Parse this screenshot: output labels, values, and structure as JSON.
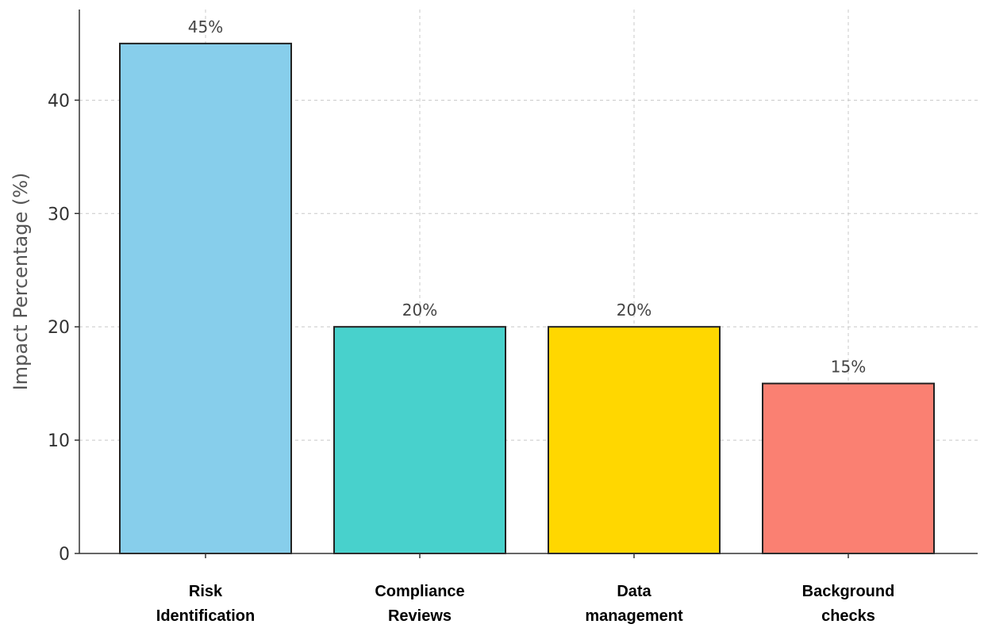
{
  "chart_data": {
    "type": "bar",
    "title": "",
    "xlabel": "",
    "ylabel": "Impact Percentage (%)",
    "ylim": [
      0,
      48
    ],
    "yticks": [
      0,
      10,
      20,
      30,
      40
    ],
    "grid": true,
    "categories": [
      [
        "Risk",
        "Identification"
      ],
      [
        "Compliance",
        "Reviews"
      ],
      [
        "Data",
        "management"
      ],
      [
        "Background",
        "checks"
      ]
    ],
    "values": [
      45,
      20,
      20,
      15
    ],
    "data_labels": [
      "45%",
      "20%",
      "20%",
      "15%"
    ],
    "colors": [
      "#87CEEB",
      "#48D1CC",
      "#FFD700",
      "#FA8072"
    ]
  }
}
